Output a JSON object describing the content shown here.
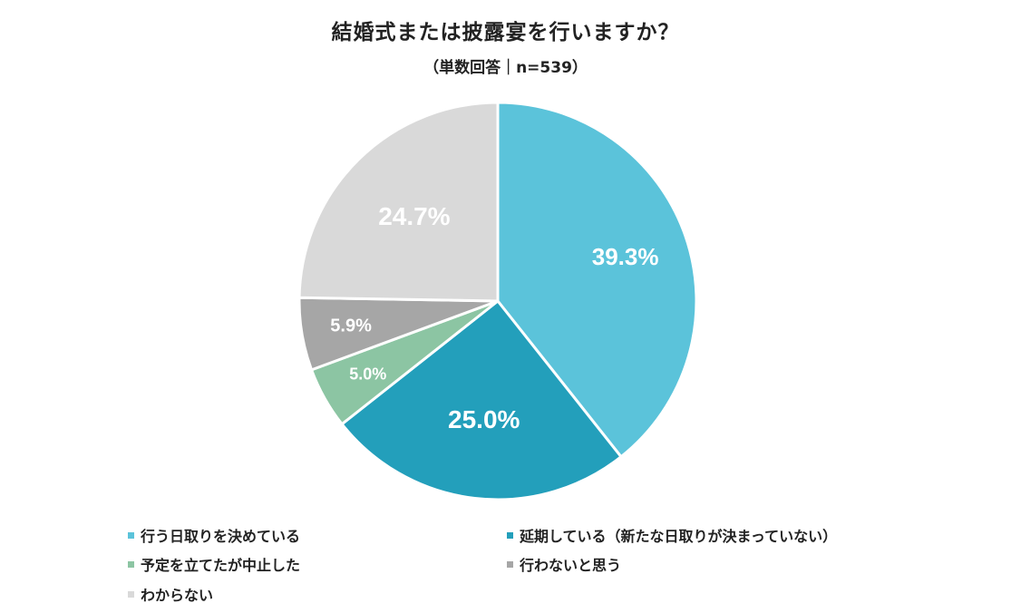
{
  "title": "結婚式または披露宴を行いますか？",
  "subtitle": "（単数回答｜n=539）",
  "chart_data": {
    "type": "pie",
    "start_angle_deg": 0,
    "direction": "clockwise",
    "categories": [
      "行う日取りを決めている",
      "延期している（新たな日取りが決まっていない）",
      "予定を立てたが中止した",
      "行わないと思う",
      "わからない"
    ],
    "values": [
      39.3,
      25.0,
      5.0,
      5.9,
      24.7
    ],
    "value_labels": [
      "39.3%",
      "25.0%",
      "5.0%",
      "5.9%",
      "24.7%"
    ],
    "colors": [
      "#5bc3da",
      "#239fbb",
      "#8cc5a3",
      "#a6a6a6",
      "#d9d9d9"
    ],
    "legend_position": "bottom"
  }
}
